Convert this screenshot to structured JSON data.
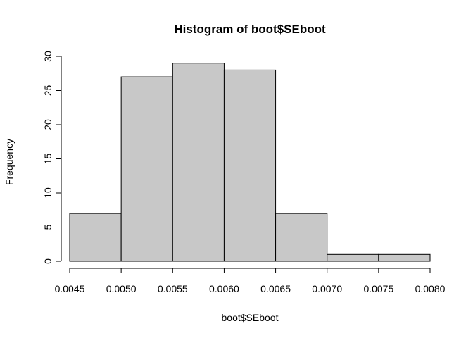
{
  "chart_data": {
    "type": "bar",
    "title": "Histogram of boot$SEboot",
    "xlabel": "boot$SEboot",
    "ylabel": "Frequency",
    "bins": [
      {
        "from": 0.0045,
        "to": 0.005,
        "count": 7
      },
      {
        "from": 0.005,
        "to": 0.0055,
        "count": 27
      },
      {
        "from": 0.0055,
        "to": 0.006,
        "count": 29
      },
      {
        "from": 0.006,
        "to": 0.0065,
        "count": 28
      },
      {
        "from": 0.0065,
        "to": 0.007,
        "count": 7
      },
      {
        "from": 0.007,
        "to": 0.0075,
        "count": 1
      },
      {
        "from": 0.0075,
        "to": 0.008,
        "count": 1
      }
    ],
    "xlim": [
      0.0045,
      0.008
    ],
    "ylim": [
      0,
      30
    ],
    "x_ticks": [
      {
        "value": 0.0045,
        "label": "0.0045"
      },
      {
        "value": 0.005,
        "label": "0.0050"
      },
      {
        "value": 0.0055,
        "label": "0.0055"
      },
      {
        "value": 0.006,
        "label": "0.0060"
      },
      {
        "value": 0.0065,
        "label": "0.0065"
      },
      {
        "value": 0.007,
        "label": "0.0070"
      },
      {
        "value": 0.0075,
        "label": "0.0075"
      },
      {
        "value": 0.008,
        "label": "0.0080"
      }
    ],
    "y_ticks": [
      {
        "value": 0,
        "label": "0"
      },
      {
        "value": 5,
        "label": "5"
      },
      {
        "value": 10,
        "label": "10"
      },
      {
        "value": 15,
        "label": "15"
      },
      {
        "value": 20,
        "label": "20"
      },
      {
        "value": 25,
        "label": "25"
      },
      {
        "value": 30,
        "label": "30"
      }
    ],
    "bar_color": "#c8c8c8",
    "grid": false
  }
}
